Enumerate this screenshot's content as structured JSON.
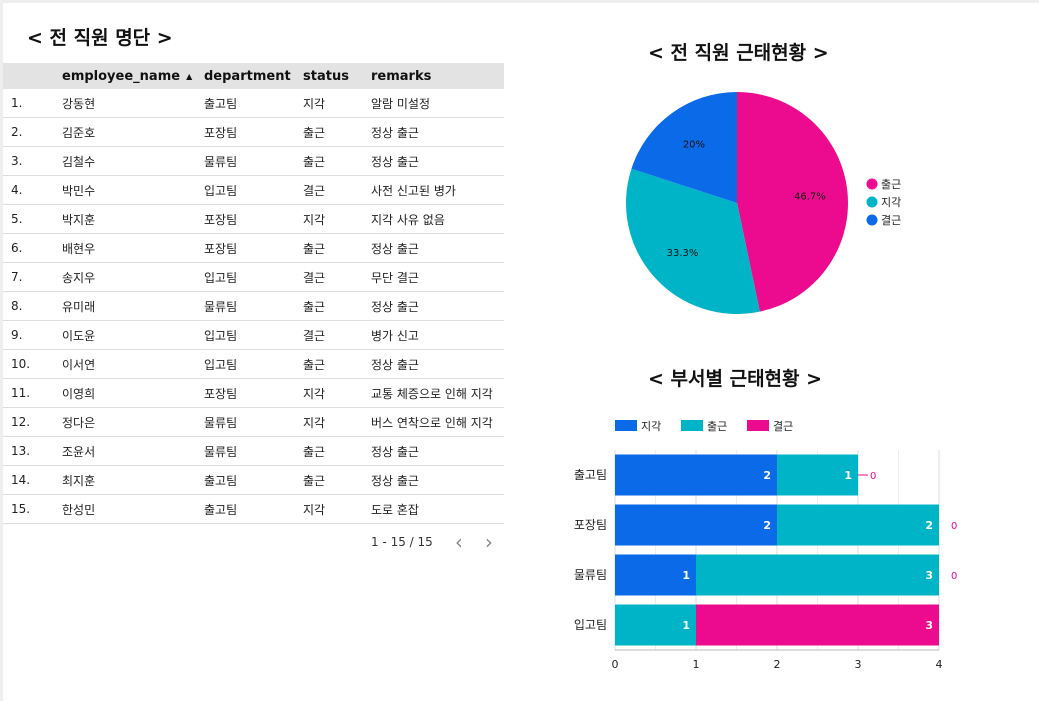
{
  "table": {
    "title": "< 전 직원 명단 >",
    "columns": [
      "",
      "employee_name",
      "department",
      "status",
      "remarks"
    ],
    "rows": [
      {
        "num": "1.",
        "name": "강동현",
        "dept": "출고팀",
        "status": "지각",
        "remarks": "알람 미설정"
      },
      {
        "num": "2.",
        "name": "김준호",
        "dept": "포장팀",
        "status": "출근",
        "remarks": "정상 출근"
      },
      {
        "num": "3.",
        "name": "김철수",
        "dept": "물류팀",
        "status": "출근",
        "remarks": "정상 출근"
      },
      {
        "num": "4.",
        "name": "박민수",
        "dept": "입고팀",
        "status": "결근",
        "remarks": "사전 신고된 병가"
      },
      {
        "num": "5.",
        "name": "박지훈",
        "dept": "포장팀",
        "status": "지각",
        "remarks": "지각 사유 없음"
      },
      {
        "num": "6.",
        "name": "배현우",
        "dept": "포장팀",
        "status": "출근",
        "remarks": "정상 출근"
      },
      {
        "num": "7.",
        "name": "송지우",
        "dept": "입고팀",
        "status": "결근",
        "remarks": "무단 결근"
      },
      {
        "num": "8.",
        "name": "유미래",
        "dept": "물류팀",
        "status": "출근",
        "remarks": "정상 출근"
      },
      {
        "num": "9.",
        "name": "이도윤",
        "dept": "입고팀",
        "status": "결근",
        "remarks": "병가 신고"
      },
      {
        "num": "10.",
        "name": "이서연",
        "dept": "입고팀",
        "status": "출근",
        "remarks": "정상 출근"
      },
      {
        "num": "11.",
        "name": "이영희",
        "dept": "포장팀",
        "status": "지각",
        "remarks": "교통 체증으로 인해 지각"
      },
      {
        "num": "12.",
        "name": "정다은",
        "dept": "물류팀",
        "status": "지각",
        "remarks": "버스 연착으로 인해 지각"
      },
      {
        "num": "13.",
        "name": "조윤서",
        "dept": "물류팀",
        "status": "출근",
        "remarks": "정상 출근"
      },
      {
        "num": "14.",
        "name": "최지훈",
        "dept": "출고팀",
        "status": "출근",
        "remarks": "정상 출근"
      },
      {
        "num": "15.",
        "name": "한성민",
        "dept": "출고팀",
        "status": "지각",
        "remarks": "도로 혼잡"
      }
    ],
    "pagination": "1 - 15 / 15",
    "sort_icon": "sort-ascending-icon"
  },
  "colors": {
    "출근": "#ec0b8e",
    "지각": "#00b4c8",
    "결근": "#0a6ae8",
    "bar_지각": "#0a6ae8",
    "bar_출근": "#00b4c8",
    "bar_결근": "#ec0b8e"
  },
  "chart_data": [
    {
      "type": "pie",
      "title": "< 전 직원 근태현황 >",
      "labels": [
        "출근",
        "지각",
        "결근"
      ],
      "values": [
        46.7,
        33.3,
        20
      ],
      "value_labels": [
        "46.7%",
        "33.3%",
        "20%"
      ],
      "legend": "right"
    },
    {
      "type": "bar",
      "orientation": "horizontal",
      "stacked": true,
      "title": "< 부서별 근태현황 >",
      "categories": [
        "출고팀",
        "포장팀",
        "물류팀",
        "입고팀"
      ],
      "series": [
        {
          "name": "지각",
          "values": [
            2,
            2,
            1,
            0
          ]
        },
        {
          "name": "출근",
          "values": [
            1,
            2,
            3,
            1
          ]
        },
        {
          "name": "결근",
          "values": [
            0,
            0,
            0,
            3
          ]
        }
      ],
      "x_ticks": [
        "0",
        "1",
        "2",
        "3",
        "4"
      ],
      "xlim": [
        0,
        4
      ],
      "legend": "top",
      "grid": true
    }
  ]
}
